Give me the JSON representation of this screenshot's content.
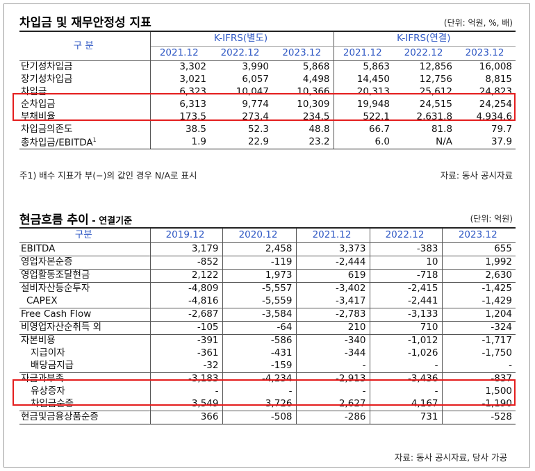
{
  "section1": {
    "title": "차입금 및 재무안정성 지표",
    "unit": "(단위: 억원, %, 배)",
    "header": {
      "gubun": "구 분",
      "group_separate": "K-IFRS(별도)",
      "group_consolidated": "K-IFRS(연결)",
      "years": [
        "2021.12",
        "2022.12",
        "2023.12",
        "2021.12",
        "2022.12",
        "2023.12"
      ]
    },
    "rows": [
      {
        "label": "단기성차입금",
        "values": [
          "3,302",
          "3,990",
          "5,868",
          "5,863",
          "12,856",
          "16,008"
        ]
      },
      {
        "label": "장기성차입금",
        "values": [
          "3,021",
          "6,057",
          "4,498",
          "14,450",
          "12,756",
          "8,815"
        ]
      },
      {
        "label": "차입금",
        "values": [
          "6,323",
          "10,047",
          "10,366",
          "20,313",
          "25,612",
          "24,823"
        ]
      },
      {
        "label": "순차입금",
        "values": [
          "6,313",
          "9,774",
          "10,309",
          "19,948",
          "24,515",
          "24,254"
        ]
      },
      {
        "label": "부채비율",
        "values": [
          "173.5",
          "273.4",
          "234.5",
          "522.1",
          "2,631.8",
          "4,934.6"
        ]
      },
      {
        "label": "차입금의존도",
        "values": [
          "38.5",
          "52.3",
          "48.8",
          "66.7",
          "81.8",
          "79.7"
        ]
      },
      {
        "label": "총차입금/EBITDA",
        "sup": "1",
        "values": [
          "1.9",
          "22.9",
          "23.2",
          "6.0",
          "N/A",
          "37.9"
        ]
      }
    ],
    "footnote": "주1) 배수 지표가 부(−)의 값인 경우 N/A로 표시",
    "source": "자료: 동사 공시자료"
  },
  "section2": {
    "title": "현금흐름 추이",
    "subtitle": " - 연결기준",
    "unit": "(단위: 억원)",
    "header": {
      "gubun": "구분",
      "years": [
        "2019.12",
        "2020.12",
        "2021.12",
        "2022.12",
        "2023.12"
      ]
    },
    "rows": [
      {
        "label": "EBITDA",
        "level": 0,
        "values": [
          "3,179",
          "2,458",
          "3,373",
          "-383",
          "655"
        ]
      },
      {
        "label": "영업자본순증",
        "level": 0,
        "values": [
          "-852",
          "-119",
          "-2,444",
          "10",
          "1,992"
        ]
      },
      {
        "label": "영업활동조달현금",
        "level": 0,
        "values": [
          "2,122",
          "1,973",
          "619",
          "-718",
          "2,630"
        ]
      },
      {
        "label": "설비자산등순투자",
        "level": 0,
        "values": [
          "-4,809",
          "-5,557",
          "-3,402",
          "-2,415",
          "-1,425"
        ]
      },
      {
        "label": "CAPEX",
        "level": 1,
        "values": [
          "-4,816",
          "-5,559",
          "-3,417",
          "-2,441",
          "-1,429"
        ]
      },
      {
        "label": "Free Cash Flow",
        "level": 0,
        "values": [
          "-2,687",
          "-3,584",
          "-2,783",
          "-3,133",
          "1,204"
        ]
      },
      {
        "label": "비영업자산순취득 외",
        "level": 0,
        "values": [
          "-105",
          "-64",
          "210",
          "710",
          "-324"
        ]
      },
      {
        "label": "자본비용",
        "level": 0,
        "values": [
          "-391",
          "-586",
          "-340",
          "-1,012",
          "-1,717"
        ]
      },
      {
        "label": "지급이자",
        "level": 2,
        "values": [
          "-361",
          "-431",
          "-344",
          "-1,026",
          "-1,750"
        ]
      },
      {
        "label": "배당금지급",
        "level": 2,
        "values": [
          "-32",
          "-159",
          "-",
          "-",
          "-"
        ]
      },
      {
        "label": "자금과부족",
        "level": 0,
        "values": [
          "-3,183",
          "-4,234",
          "-2,913",
          "-3,436",
          "-837"
        ]
      },
      {
        "label": "유상증자",
        "level": 2,
        "values": [
          "-",
          "-",
          "-",
          "-",
          "1,500"
        ]
      },
      {
        "label": "차입금순증",
        "level": 2,
        "values": [
          "3,549",
          "3,726",
          "2,627",
          "4,167",
          "-1,190"
        ]
      },
      {
        "label": "현금및금융상품순증",
        "level": 0,
        "values": [
          "366",
          "-508",
          "-286",
          "731",
          "-528"
        ]
      }
    ],
    "source": "자료: 동사 공시자료, 당사 가공"
  },
  "colors": {
    "header_text": "#2f58c4",
    "highlight": "#e41d1d"
  }
}
